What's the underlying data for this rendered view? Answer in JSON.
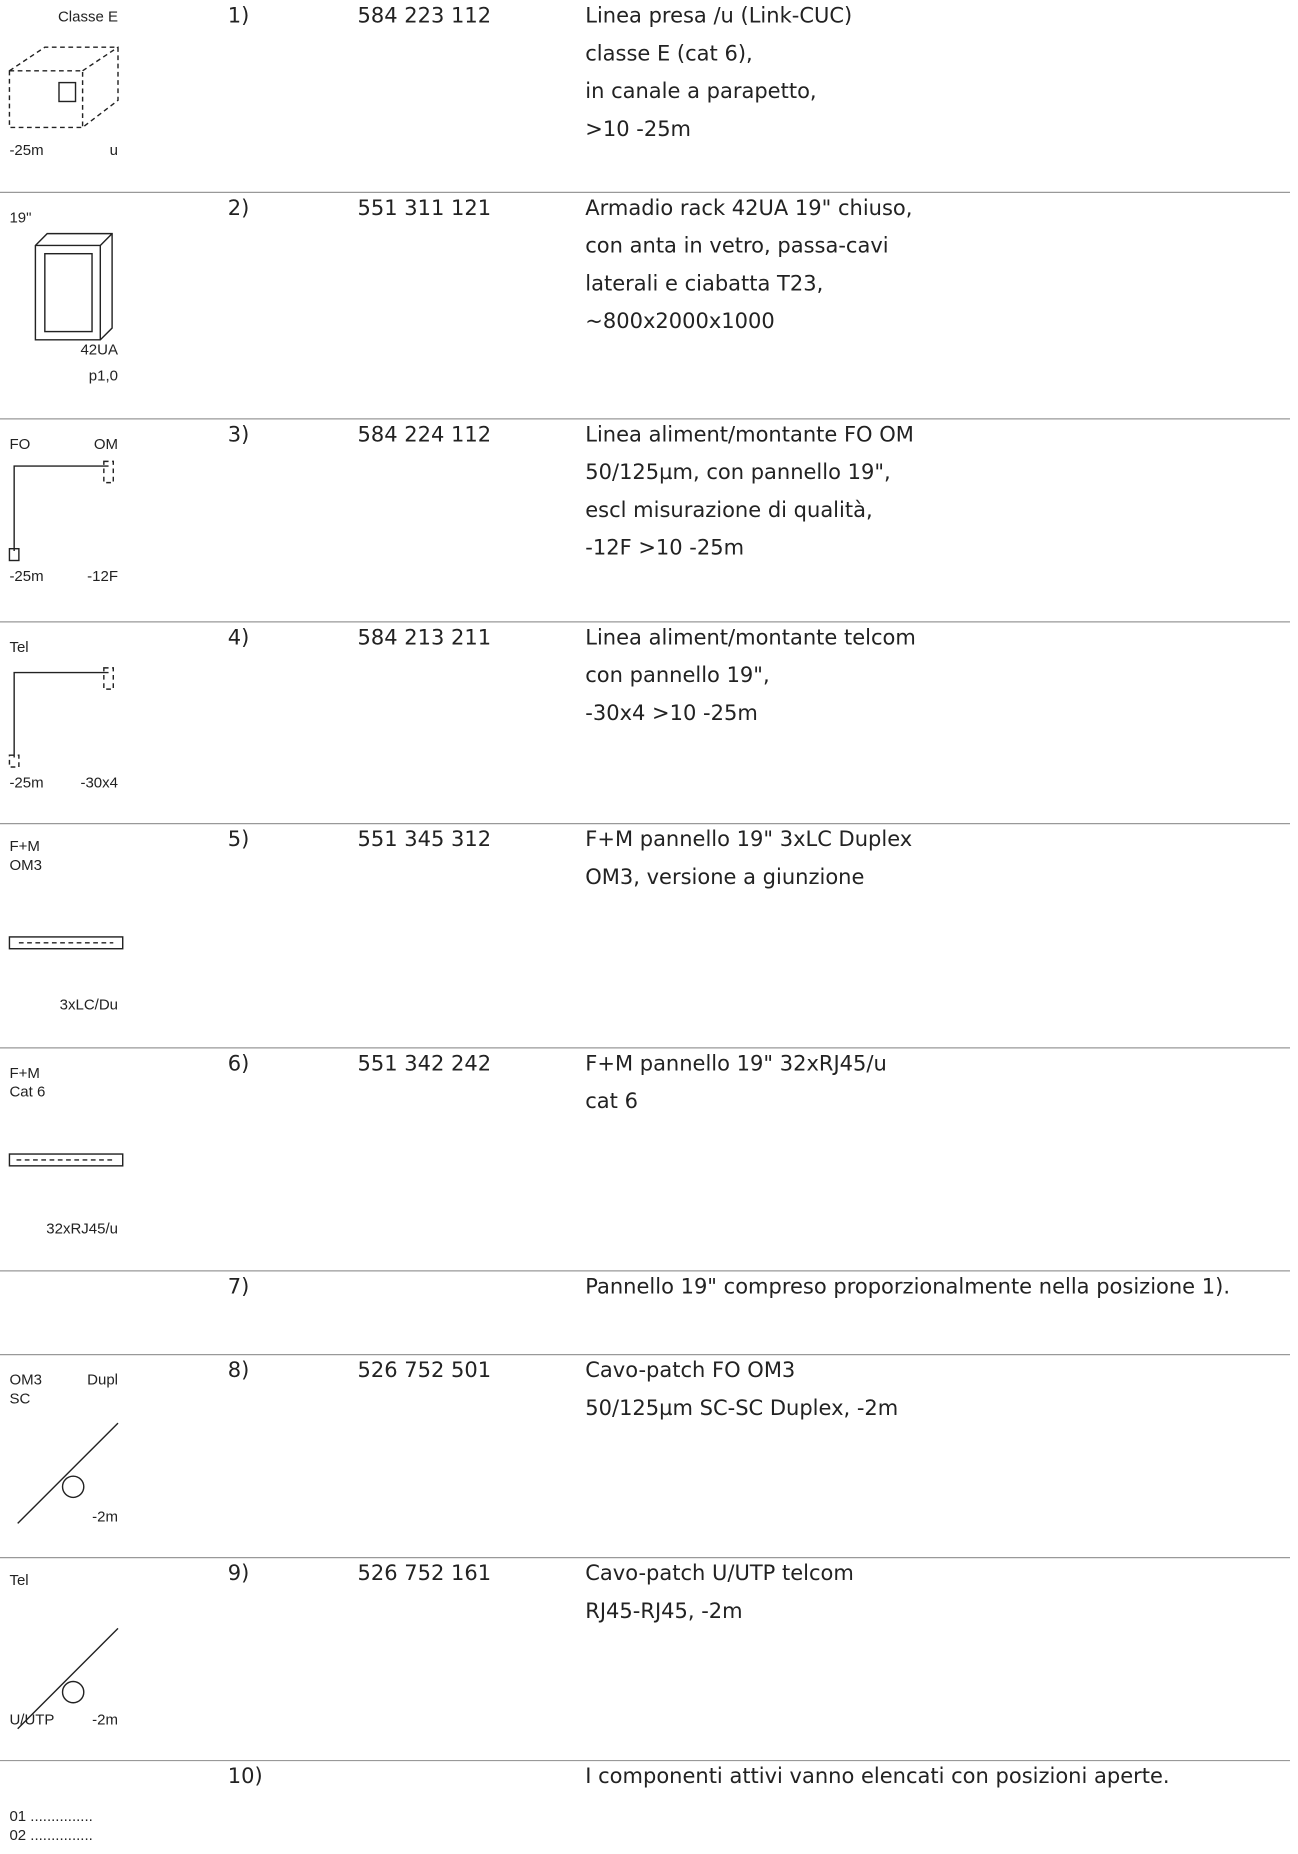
{
  "rows": [
    {
      "number": "1)",
      "code": "584 223 112",
      "description": [
        "Linea presa /u (Link-CUC)",
        "classe E (cat 6),",
        "in canale a parapetto,",
        ">10 -25m"
      ],
      "icon_labels": [
        "Classe E",
        "-25m",
        "u"
      ]
    },
    {
      "number": "2)",
      "code": "551 311 121",
      "description": [
        "Armadio rack 42UA 19\" chiuso,",
        "con anta in vetro, passa-cavi",
        "laterali e ciabatta T23,",
        "~800x2000x1000"
      ],
      "icon_labels": [
        "19\"",
        "42UA",
        "p1,0"
      ]
    },
    {
      "number": "3)",
      "code": "584 224 112",
      "description": [
        "Linea aliment/montante FO OM",
        "50/125µm, con pannello 19\",",
        "escl misurazione di qualità,",
        "-12F >10 -25m"
      ],
      "icon_labels": [
        "FO",
        "OM",
        "-25m",
        "-12F"
      ]
    },
    {
      "number": "4)",
      "code": "584 213 211",
      "description": [
        "Linea aliment/montante telcom",
        "con pannello 19\",",
        "-30x4 >10 -25m"
      ],
      "icon_labels": [
        "Tel",
        "-25m",
        "-30x4"
      ]
    },
    {
      "number": "5)",
      "code": "551 345 312",
      "description": [
        "F+M pannello 19\" 3xLC Duplex",
        "OM3, versione a giunzione"
      ],
      "icon_labels": [
        "F+M",
        "OM3",
        "3xLC/Du"
      ]
    },
    {
      "number": "6)",
      "code": "551 342 242",
      "description": [
        "F+M pannello 19\" 32xRJ45/u",
        "cat 6"
      ],
      "icon_labels": [
        "F+M",
        "Cat 6",
        "32xRJ45/u"
      ]
    },
    {
      "number": "7)",
      "description": [
        "Pannello 19\" compreso proporzionalmente nella posizione 1)."
      ],
      "icon_labels": []
    },
    {
      "number": "8)",
      "code": "526 752 501",
      "description": [
        "Cavo-patch FO OM3",
        "50/125µm SC-SC Duplex, -2m"
      ],
      "icon_labels": [
        "OM3",
        "SC",
        "Dupl",
        "-2m"
      ]
    },
    {
      "number": "9)",
      "code": "526 752 161",
      "description": [
        "Cavo-patch U/UTP telcom",
        "RJ45-RJ45, -2m"
      ],
      "icon_labels": [
        "Tel",
        "U/UTP",
        "-2m"
      ]
    },
    {
      "number": "10)",
      "description": [
        "I componenti attivi vanno elencati con posizioni aperte."
      ],
      "icon_labels": [
        "01 ...............",
        "02 ..............."
      ]
    }
  ]
}
